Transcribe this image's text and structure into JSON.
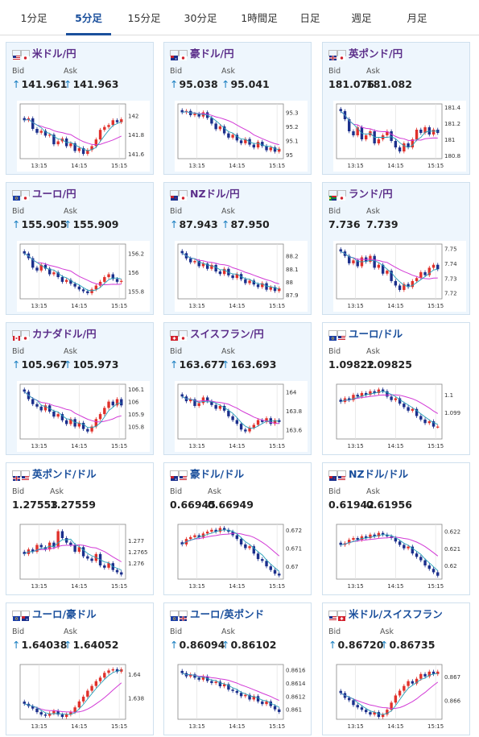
{
  "tabs": [
    {
      "label": "1分足",
      "active": false
    },
    {
      "label": "5分足",
      "active": true
    },
    {
      "label": "15分足",
      "active": false
    },
    {
      "label": "30分足",
      "active": false
    },
    {
      "label": "1時間足",
      "active": false
    },
    {
      "label": "日足",
      "active": false
    },
    {
      "label": "週足",
      "active": false
    },
    {
      "label": "月足",
      "active": false
    }
  ],
  "labels": {
    "bid": "Bid",
    "ask": "Ask"
  },
  "colors": {
    "up": "#e0312b",
    "down": "#1b2f8c",
    "ma_long": "#d23ad6",
    "ma_short": "#26a0b8",
    "title": "#5b2e8a",
    "title_alt": "#1a4f9c",
    "arrow": "#1a7fc1"
  },
  "cards": [
    {
      "pair": "米ドル/円",
      "flags": [
        "us",
        "jp"
      ],
      "bid": "141.961",
      "ask": "141.963",
      "arrows": true,
      "chart_data": {
        "type": "candlestick",
        "x_ticks": [
          "13:15",
          "14:15",
          "15:15"
        ],
        "y_ticks": [
          "142",
          "141.8",
          "141.6"
        ],
        "ylim": [
          141.55,
          142.12
        ],
        "close": [
          141.95,
          141.97,
          141.86,
          141.82,
          141.84,
          141.79,
          141.8,
          141.7,
          141.73,
          141.76,
          141.68,
          141.71,
          141.63,
          141.66,
          141.6,
          141.64,
          141.68,
          141.75,
          141.85,
          141.88,
          141.9,
          141.95,
          141.93,
          141.96
        ]
      }
    },
    {
      "pair": "豪ドル/円",
      "flags": [
        "au",
        "jp"
      ],
      "bid": "95.038",
      "ask": "95.041",
      "arrows": true,
      "chart_data": {
        "type": "candlestick",
        "x_ticks": [
          "13:15",
          "14:15",
          "15:15"
        ],
        "y_ticks": [
          "95.3",
          "95.2",
          "95.1",
          "95"
        ],
        "ylim": [
          94.97,
          95.36
        ],
        "close": [
          95.3,
          95.31,
          95.28,
          95.29,
          95.27,
          95.3,
          95.26,
          95.22,
          95.18,
          95.2,
          95.15,
          95.12,
          95.14,
          95.1,
          95.08,
          95.11,
          95.07,
          95.05,
          95.09,
          95.06,
          95.03,
          95.05,
          95.02,
          95.04
        ]
      }
    },
    {
      "pair": "英ポンド/円",
      "flags": [
        "gb",
        "jp"
      ],
      "bid": "181.076",
      "ask": "181.082",
      "arrows": false,
      "chart_data": {
        "type": "candlestick",
        "x_ticks": [
          "13:15",
          "14:15",
          "15:15"
        ],
        "y_ticks": [
          "181.4",
          "181.2",
          "181",
          "180.8"
        ],
        "ylim": [
          180.76,
          181.44
        ],
        "close": [
          181.35,
          181.25,
          181.1,
          181.05,
          181.15,
          181.0,
          181.05,
          181.1,
          180.95,
          181.0,
          181.05,
          181.1,
          180.98,
          180.9,
          180.85,
          180.95,
          180.9,
          181.0,
          181.12,
          181.08,
          181.15,
          181.06,
          181.12,
          181.08
        ]
      }
    },
    {
      "pair": "ユーロ/円",
      "flags": [
        "eu",
        "jp"
      ],
      "bid": "155.905",
      "ask": "155.909",
      "arrows": true,
      "chart_data": {
        "type": "candlestick",
        "x_ticks": [
          "13:15",
          "14:15",
          "15:15"
        ],
        "y_ticks": [
          "156.2",
          "156",
          "155.8"
        ],
        "ylim": [
          155.72,
          156.3
        ],
        "close": [
          156.2,
          156.15,
          156.05,
          156.02,
          156.08,
          156.04,
          155.98,
          156.0,
          155.95,
          155.9,
          155.92,
          155.88,
          155.85,
          155.82,
          155.8,
          155.78,
          155.82,
          155.86,
          155.9,
          155.95,
          155.98,
          155.93,
          155.9,
          155.91
        ]
      }
    },
    {
      "pair": "NZドル/円",
      "flags": [
        "nz",
        "jp"
      ],
      "bid": "87.943",
      "ask": "87.950",
      "arrows": true,
      "chart_data": {
        "type": "candlestick",
        "x_ticks": [
          "13:15",
          "14:15",
          "15:15"
        ],
        "y_ticks": [
          "88.2",
          "88.1",
          "88",
          "87.9"
        ],
        "ylim": [
          87.87,
          88.29
        ],
        "close": [
          88.22,
          88.18,
          88.15,
          88.16,
          88.12,
          88.14,
          88.1,
          88.13,
          88.08,
          88.06,
          88.1,
          88.05,
          88.03,
          88.06,
          88.02,
          87.99,
          88.01,
          87.98,
          87.96,
          87.99,
          87.94,
          87.96,
          87.93,
          87.95
        ]
      }
    },
    {
      "pair": "ランド/円",
      "flags": [
        "za",
        "jp"
      ],
      "bid": "7.736",
      "ask": "7.739",
      "arrows": false,
      "chart_data": {
        "type": "candlestick",
        "x_ticks": [
          "13:15",
          "14:15",
          "15:15"
        ],
        "y_ticks": [
          "7.75",
          "7.74",
          "7.73",
          "7.72"
        ],
        "ylim": [
          7.716,
          7.753
        ],
        "close": [
          7.748,
          7.745,
          7.74,
          7.742,
          7.738,
          7.744,
          7.741,
          7.745,
          7.737,
          7.739,
          7.733,
          7.735,
          7.728,
          7.725,
          7.722,
          7.726,
          7.724,
          7.728,
          7.73,
          7.734,
          7.732,
          7.737,
          7.739,
          7.736
        ]
      }
    },
    {
      "pair": "カナダドル/円",
      "flags": [
        "ca",
        "jp"
      ],
      "bid": "105.967",
      "ask": "105.973",
      "arrows": true,
      "chart_data": {
        "type": "candlestick",
        "x_ticks": [
          "13:15",
          "14:15",
          "15:15"
        ],
        "y_ticks": [
          "106.1",
          "106",
          "105.9",
          "105.8"
        ],
        "ylim": [
          105.7,
          106.14
        ],
        "close": [
          106.08,
          106.02,
          105.98,
          105.96,
          105.93,
          105.97,
          105.92,
          105.88,
          105.9,
          105.85,
          105.82,
          105.86,
          105.8,
          105.83,
          105.78,
          105.76,
          105.8,
          105.86,
          105.9,
          105.95,
          106.0,
          105.97,
          106.02,
          105.97
        ]
      }
    },
    {
      "pair": "スイスフラン/円",
      "flags": [
        "ch",
        "jp"
      ],
      "bid": "163.677",
      "ask": "163.693",
      "arrows": true,
      "chart_data": {
        "type": "candlestick",
        "x_ticks": [
          "13:15",
          "14:15",
          "15:15"
        ],
        "y_ticks": [
          "164",
          "163.8",
          "163.6"
        ],
        "ylim": [
          163.5,
          164.08
        ],
        "close": [
          163.95,
          163.9,
          163.92,
          163.85,
          163.88,
          163.94,
          163.9,
          163.86,
          163.82,
          163.85,
          163.8,
          163.74,
          163.7,
          163.66,
          163.6,
          163.58,
          163.62,
          163.65,
          163.7,
          163.68,
          163.72,
          163.66,
          163.7,
          163.68
        ]
      }
    },
    {
      "pair": "ユーロ/ドル",
      "flags": [
        "eu",
        "us"
      ],
      "bid": "1.09822",
      "ask": "1.09825",
      "arrows": false,
      "chart_data": {
        "type": "candlestick",
        "x_ticks": [
          "13:15",
          "14:15",
          "15:15"
        ],
        "y_ticks": [
          "1.1",
          "1.099"
        ],
        "ylim": [
          1.0975,
          1.1006
        ],
        "close": [
          1.0996,
          1.0998,
          1.0997,
          1.1,
          1.0999,
          1.1001,
          1.1,
          1.1002,
          1.1001,
          1.1003,
          1.1002,
          1.0999,
          1.0997,
          1.0998,
          1.0995,
          1.0993,
          1.0991,
          1.0992,
          1.0988,
          1.0986,
          1.0984,
          1.0985,
          1.0982,
          1.0982
        ]
      }
    },
    {
      "pair": "英ポンド/ドル",
      "flags": [
        "gb",
        "us"
      ],
      "bid": "1.27553",
      "ask": "1.27559",
      "arrows": false,
      "chart_data": {
        "type": "candlestick",
        "x_ticks": [
          "13:15",
          "14:15",
          "15:15"
        ],
        "y_ticks": [
          "1.277",
          "1.2765",
          "1.276"
        ],
        "ylim": [
          1.2753,
          1.2777
        ],
        "close": [
          1.2764,
          1.2766,
          1.2765,
          1.2768,
          1.2767,
          1.2766,
          1.2769,
          1.2767,
          1.2774,
          1.2771,
          1.2769,
          1.2768,
          1.2765,
          1.2767,
          1.2763,
          1.2762,
          1.2761,
          1.2764,
          1.2759,
          1.2758,
          1.276,
          1.2757,
          1.2756,
          1.2755
        ]
      }
    },
    {
      "pair": "豪ドル/ドル",
      "flags": [
        "au",
        "us"
      ],
      "bid": "0.66945",
      "ask": "0.66949",
      "arrows": false,
      "chart_data": {
        "type": "candlestick",
        "x_ticks": [
          "13:15",
          "14:15",
          "15:15"
        ],
        "y_ticks": [
          "0.672",
          "0.671",
          "0.67"
        ],
        "ylim": [
          0.6693,
          0.6723
        ],
        "close": [
          0.6712,
          0.6715,
          0.6716,
          0.6717,
          0.6716,
          0.6718,
          0.6719,
          0.672,
          0.6719,
          0.6721,
          0.672,
          0.6719,
          0.6717,
          0.6715,
          0.6712,
          0.671,
          0.6711,
          0.6707,
          0.6704,
          0.6703,
          0.67,
          0.6698,
          0.6696,
          0.6695
        ]
      }
    },
    {
      "pair": "NZドル/ドル",
      "flags": [
        "nz",
        "us"
      ],
      "bid": "0.61942",
      "ask": "0.61956",
      "arrows": false,
      "chart_data": {
        "type": "candlestick",
        "x_ticks": [
          "13:15",
          "14:15",
          "15:15"
        ],
        "y_ticks": [
          "0.622",
          "0.621",
          "0.62"
        ],
        "ylim": [
          0.6192,
          0.6224
        ],
        "close": [
          0.6212,
          0.6213,
          0.6215,
          0.6216,
          0.6215,
          0.6217,
          0.6216,
          0.6218,
          0.6217,
          0.6219,
          0.6218,
          0.6217,
          0.6216,
          0.6214,
          0.6212,
          0.621,
          0.6211,
          0.6207,
          0.6205,
          0.6203,
          0.62,
          0.6198,
          0.6196,
          0.6194
        ]
      }
    },
    {
      "pair": "ユーロ/豪ドル",
      "flags": [
        "eu",
        "au"
      ],
      "bid": "1.64038",
      "ask": "1.64052",
      "arrows": true,
      "chart_data": {
        "type": "candlestick",
        "x_ticks": [
          "13:15",
          "14:15",
          "15:15"
        ],
        "y_ticks": [
          "1.64",
          "1.638"
        ],
        "ylim": [
          1.6362,
          1.6408
        ],
        "close": [
          1.6375,
          1.6373,
          1.6371,
          1.6368,
          1.6366,
          1.6365,
          1.6367,
          1.6369,
          1.6366,
          1.6364,
          1.6366,
          1.6368,
          1.6372,
          1.6377,
          1.6381,
          1.6386,
          1.639,
          1.6394,
          1.6397,
          1.6401,
          1.6403,
          1.6404,
          1.6402,
          1.6404
        ]
      }
    },
    {
      "pair": "ユーロ/英ポンド",
      "flags": [
        "eu",
        "gb"
      ],
      "bid": "0.86094",
      "ask": "0.86102",
      "arrows": true,
      "chart_data": {
        "type": "candlestick",
        "x_ticks": [
          "13:15",
          "14:15",
          "15:15"
        ],
        "y_ticks": [
          "0.8616",
          "0.8614",
          "0.8612",
          "0.861"
        ],
        "ylim": [
          0.86085,
          0.86168
        ],
        "close": [
          0.86155,
          0.8615,
          0.86153,
          0.86148,
          0.86145,
          0.8615,
          0.86143,
          0.8614,
          0.86142,
          0.86135,
          0.86138,
          0.8613,
          0.86128,
          0.86125,
          0.8612,
          0.86122,
          0.86115,
          0.8612,
          0.86112,
          0.86108,
          0.86112,
          0.86105,
          0.861,
          0.86096
        ]
      }
    },
    {
      "pair": "米ドル/スイスフラン",
      "flags": [
        "us",
        "ch"
      ],
      "bid": "0.86720",
      "ask": "0.86735",
      "arrows": true,
      "chart_data": {
        "type": "candlestick",
        "x_ticks": [
          "13:15",
          "14:15",
          "15:15"
        ],
        "y_ticks": [
          "0.867",
          "0.866"
        ],
        "ylim": [
          0.8652,
          0.8675
        ],
        "close": [
          0.8663,
          0.8661,
          0.866,
          0.8658,
          0.8657,
          0.8656,
          0.8655,
          0.8654,
          0.8655,
          0.8653,
          0.8654,
          0.8656,
          0.8659,
          0.8662,
          0.8664,
          0.8666,
          0.8668,
          0.8667,
          0.8669,
          0.8671,
          0.867,
          0.8672,
          0.8671,
          0.8672
        ]
      }
    }
  ]
}
